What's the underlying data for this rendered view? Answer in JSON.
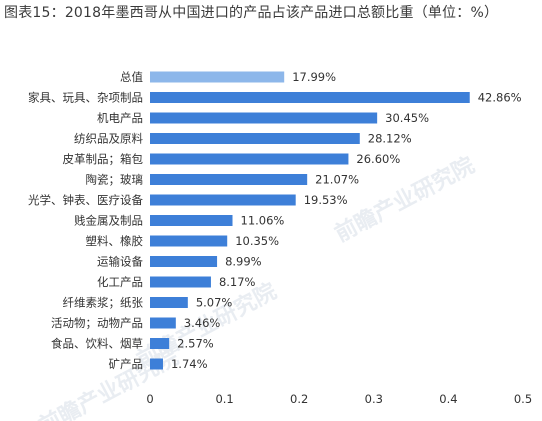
{
  "title": "图表15：2018年墨西哥从中国进口的产品占该产品进口总额比重（单位：%）",
  "watermark": "前瞻产业研究院",
  "colors": {
    "bar": "#3d7fd8",
    "highlight": "#8db7ea"
  },
  "chart_data": {
    "type": "bar",
    "orientation": "horizontal",
    "title": "图表15：2018年墨西哥从中国进口的产品占该产品进口总额比重（单位：%）",
    "xlabel": "",
    "ylabel": "",
    "xlim": [
      0,
      0.5
    ],
    "xticks": [
      "0",
      "0.1",
      "0.2",
      "0.3",
      "0.4",
      "0.5"
    ],
    "grid": false,
    "categories": [
      "总值",
      "家具、玩具、杂项制品",
      "机电产品",
      "纺织品及原料",
      "皮革制品；箱包",
      "陶瓷；玻璃",
      "光学、钟表、医疗设备",
      "贱金属及制品",
      "塑料、橡胶",
      "运输设备",
      "化工产品",
      "纤维素浆；纸张",
      "活动物；动物产品",
      "食品、饮料、烟草",
      "矿产品"
    ],
    "values": [
      0.1799,
      0.4286,
      0.3045,
      0.2812,
      0.266,
      0.2107,
      0.1953,
      0.1106,
      0.1035,
      0.0899,
      0.0817,
      0.0507,
      0.0346,
      0.0257,
      0.0174
    ],
    "data_labels": [
      "17.99%",
      "42.86%",
      "30.45%",
      "28.12%",
      "26.60%",
      "21.07%",
      "19.53%",
      "11.06%",
      "10.35%",
      "8.99%",
      "8.17%",
      "5.07%",
      "3.46%",
      "2.57%",
      "1.74%"
    ]
  }
}
